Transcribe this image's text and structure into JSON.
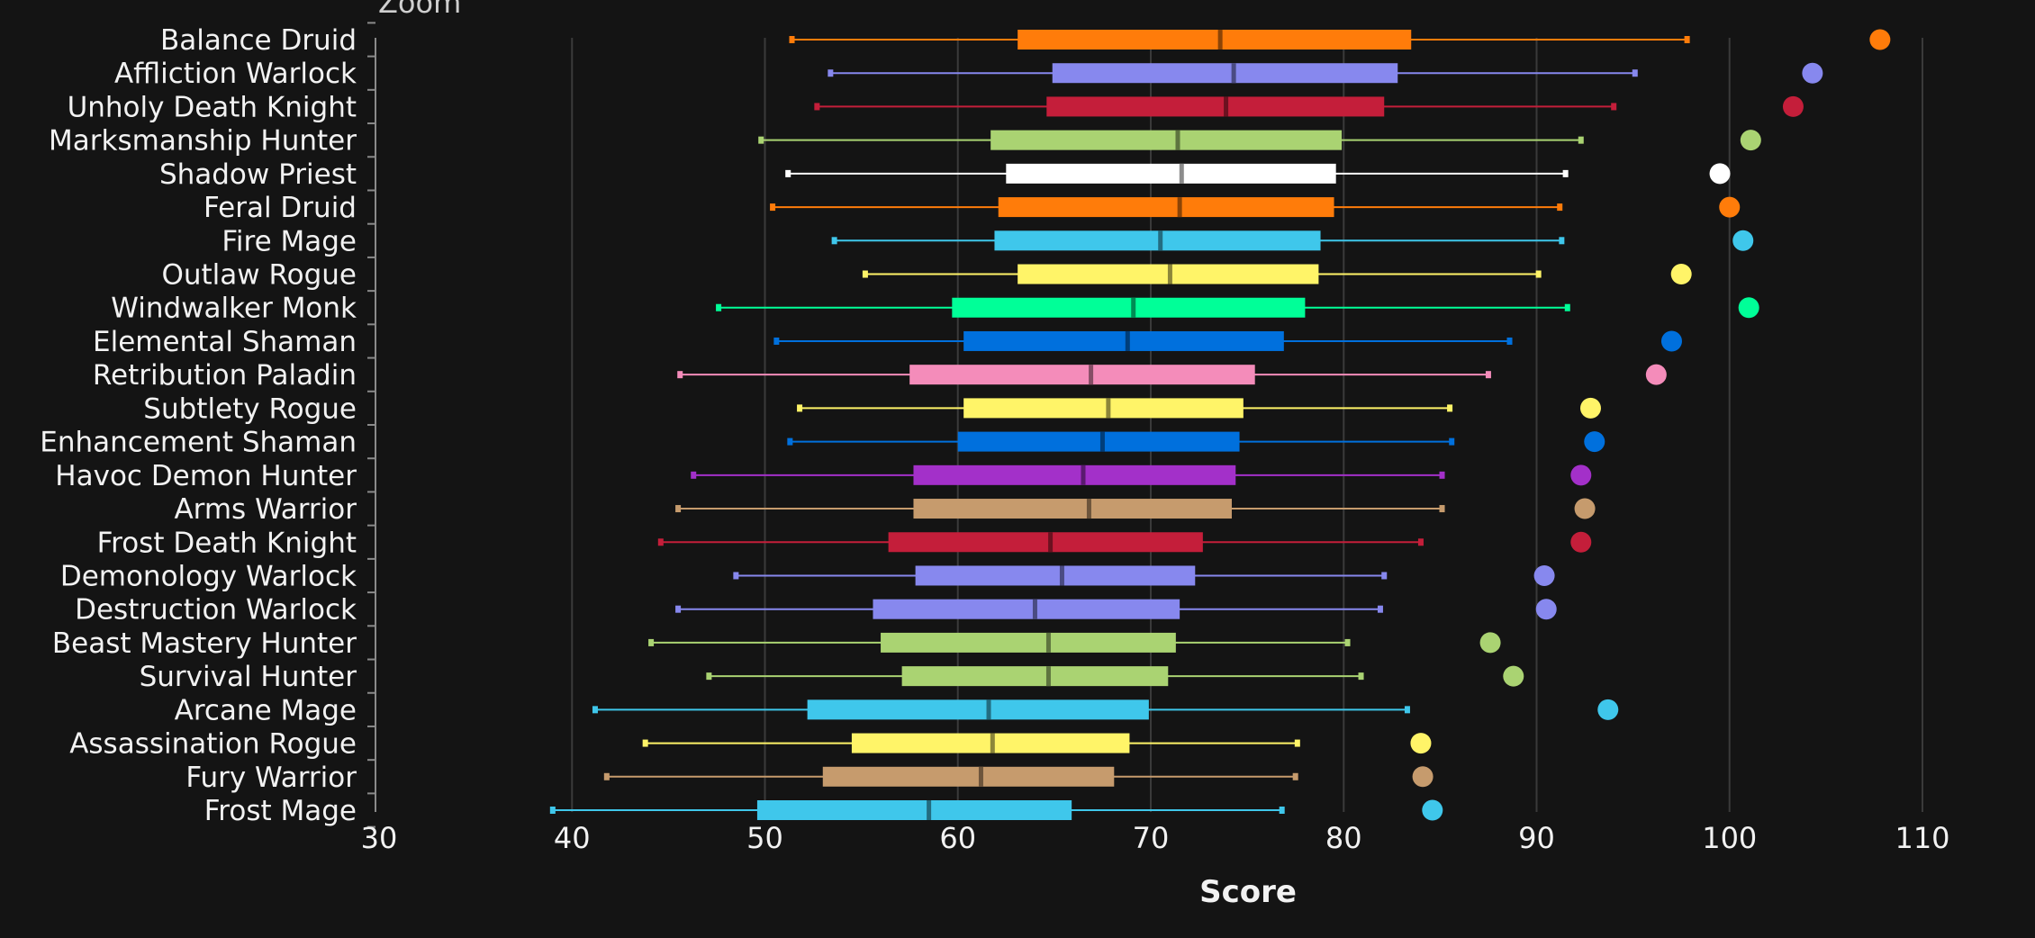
{
  "zoom_label": "Zoom",
  "chart_data": {
    "type": "boxplot",
    "xlabel": "Score",
    "xlim": [
      30,
      110
    ],
    "xticks": [
      30,
      40,
      50,
      60,
      70,
      80,
      90,
      100,
      110
    ],
    "grid": "vertical",
    "background": "#141414",
    "series": [
      {
        "name": "Balance Druid",
        "color": "#FF7C0A",
        "low": 51.4,
        "q1": 63.1,
        "median": 73.6,
        "q3": 83.5,
        "high": 97.8,
        "outlier": 107.8
      },
      {
        "name": "Affliction Warlock",
        "color": "#8788EE",
        "low": 53.4,
        "q1": 64.9,
        "median": 74.3,
        "q3": 82.8,
        "high": 95.1,
        "outlier": 104.3
      },
      {
        "name": "Unholy Death Knight",
        "color": "#C41E3A",
        "low": 52.7,
        "q1": 64.6,
        "median": 73.9,
        "q3": 82.1,
        "high": 94.0,
        "outlier": 103.3
      },
      {
        "name": "Marksmanship Hunter",
        "color": "#AAD372",
        "low": 49.8,
        "q1": 61.7,
        "median": 71.4,
        "q3": 79.9,
        "high": 92.3,
        "outlier": 101.1
      },
      {
        "name": "Shadow Priest",
        "color": "#FFFFFF",
        "low": 51.2,
        "q1": 62.5,
        "median": 71.6,
        "q3": 79.6,
        "high": 91.5,
        "outlier": 99.5
      },
      {
        "name": "Feral Druid",
        "color": "#FF7C0A",
        "low": 50.4,
        "q1": 62.1,
        "median": 71.5,
        "q3": 79.5,
        "high": 91.2,
        "outlier": 100.0
      },
      {
        "name": "Fire Mage",
        "color": "#3FC7EB",
        "low": 53.6,
        "q1": 61.9,
        "median": 70.5,
        "q3": 78.8,
        "high": 91.3,
        "outlier": 100.7
      },
      {
        "name": "Outlaw Rogue",
        "color": "#FFF468",
        "low": 55.2,
        "q1": 63.1,
        "median": 71.0,
        "q3": 78.7,
        "high": 90.1,
        "outlier": 97.5
      },
      {
        "name": "Windwalker Monk",
        "color": "#00FF98",
        "low": 47.6,
        "q1": 59.7,
        "median": 69.1,
        "q3": 78.0,
        "high": 91.6,
        "outlier": 101.0
      },
      {
        "name": "Elemental Shaman",
        "color": "#0070DD",
        "low": 50.6,
        "q1": 60.3,
        "median": 68.8,
        "q3": 76.9,
        "high": 88.6,
        "outlier": 97.0
      },
      {
        "name": "Retribution Paladin",
        "color": "#F48CBA",
        "low": 45.6,
        "q1": 57.5,
        "median": 66.9,
        "q3": 75.4,
        "high": 87.5,
        "outlier": 96.2
      },
      {
        "name": "Subtlety Rogue",
        "color": "#FFF468",
        "low": 51.8,
        "q1": 60.3,
        "median": 67.8,
        "q3": 74.8,
        "high": 85.5,
        "outlier": 92.8
      },
      {
        "name": "Enhancement Shaman",
        "color": "#0070DD",
        "low": 51.3,
        "q1": 60.0,
        "median": 67.5,
        "q3": 74.6,
        "high": 85.6,
        "outlier": 93.0
      },
      {
        "name": "Havoc Demon Hunter",
        "color": "#A330C9",
        "low": 46.3,
        "q1": 57.7,
        "median": 66.5,
        "q3": 74.4,
        "high": 85.1,
        "outlier": 92.3
      },
      {
        "name": "Arms Warrior",
        "color": "#C69B6D",
        "low": 45.5,
        "q1": 57.7,
        "median": 66.8,
        "q3": 74.2,
        "high": 85.1,
        "outlier": 92.5
      },
      {
        "name": "Frost Death Knight",
        "color": "#C41E3A",
        "low": 44.6,
        "q1": 56.4,
        "median": 64.8,
        "q3": 72.7,
        "high": 84.0,
        "outlier": 92.3
      },
      {
        "name": "Demonology Warlock",
        "color": "#8788EE",
        "low": 48.5,
        "q1": 57.8,
        "median": 65.4,
        "q3": 72.3,
        "high": 82.1,
        "outlier": 90.4
      },
      {
        "name": "Destruction Warlock",
        "color": "#8788EE",
        "low": 45.5,
        "q1": 55.6,
        "median": 64.0,
        "q3": 71.5,
        "high": 81.9,
        "outlier": 90.5
      },
      {
        "name": "Beast Mastery Hunter",
        "color": "#AAD372",
        "low": 44.1,
        "q1": 56.0,
        "median": 64.7,
        "q3": 71.3,
        "high": 80.2,
        "outlier": 87.6
      },
      {
        "name": "Survival Hunter",
        "color": "#AAD372",
        "low": 47.1,
        "q1": 57.1,
        "median": 64.7,
        "q3": 70.9,
        "high": 80.9,
        "outlier": 88.8
      },
      {
        "name": "Arcane Mage",
        "color": "#3FC7EB",
        "low": 41.2,
        "q1": 52.2,
        "median": 61.6,
        "q3": 69.9,
        "high": 83.3,
        "outlier": 93.7
      },
      {
        "name": "Assassination Rogue",
        "color": "#FFF468",
        "low": 43.8,
        "q1": 54.5,
        "median": 61.8,
        "q3": 68.9,
        "high": 77.6,
        "outlier": 84.0
      },
      {
        "name": "Fury Warrior",
        "color": "#C69B6D",
        "low": 41.8,
        "q1": 53.0,
        "median": 61.2,
        "q3": 68.1,
        "high": 77.5,
        "outlier": 84.1
      },
      {
        "name": "Frost Mage",
        "color": "#3FC7EB",
        "low": 39.0,
        "q1": 49.6,
        "median": 58.5,
        "q3": 65.9,
        "high": 76.8,
        "outlier": 84.6
      }
    ]
  }
}
